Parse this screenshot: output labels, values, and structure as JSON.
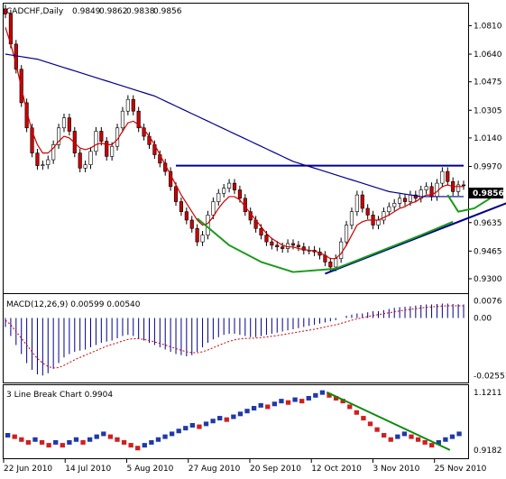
{
  "header": {
    "symbol": "CADCHF,Daily",
    "open": "0.9849",
    "high": "0.9862",
    "low": "0.9838",
    "close": "0.9856"
  },
  "price_axis": {
    "labels": [
      "1.0810",
      "1.0640",
      "1.0475",
      "1.0305",
      "1.0140",
      "0.9970",
      "0.9800",
      "0.9635",
      "0.9465",
      "0.9300"
    ],
    "current_price_label": "0.9856"
  },
  "macd": {
    "label": "MACD(12,26,9) 0.00599 0.00540",
    "axis_labels": [
      "0.0076",
      "0.00",
      "-0.02551"
    ]
  },
  "line_break": {
    "label": "3 Line Break Chart 0.9904",
    "axis_labels": [
      "1.1211",
      "0.9182"
    ]
  },
  "date_axis": {
    "labels": [
      "22 Jun 2010",
      "14 Jul 2010",
      "5 Aug 2010",
      "27 Aug 2010",
      "20 Sep 2010",
      "12 Oct 2010",
      "3 Nov 2010",
      "25 Nov 2010"
    ]
  },
  "colors": {
    "bull_candle": "#ffffff",
    "bear_candle": "#cc0000",
    "sma_short": "#cc0000",
    "sma_long": "#00008b",
    "resistance": "#00008b",
    "trendline": "#00008b",
    "cup_curve": "#1a9a1a",
    "macd_hist": "#00008b",
    "macd_signal": "#cc0000",
    "lb_up": "#1e3aa8",
    "lb_down": "#d21e1e",
    "lb_trend": "#0a8a0a"
  },
  "chart_data": [
    {
      "type": "candlestick",
      "title": "CADCHF,Daily",
      "ylim": [
        0.923,
        1.092
      ],
      "x_tick_labels": [
        "22 Jun 2010",
        "14 Jul 2010",
        "5 Aug 2010",
        "27 Aug 2010",
        "20 Sep 2010",
        "12 Oct 2010",
        "3 Nov 2010",
        "25 Nov 2010"
      ],
      "close": [
        1.088,
        1.07,
        1.055,
        1.035,
        1.02,
        1.005,
        0.9975,
        0.998,
        1.001,
        1.01,
        1.02,
        1.026,
        1.018,
        1.005,
        0.996,
        0.998,
        1.006,
        1.018,
        1.012,
        1.003,
        1.009,
        1.02,
        1.03,
        1.037,
        1.03,
        1.02,
        1.015,
        1.01,
        1.004,
        0.999,
        0.994,
        0.985,
        0.976,
        0.97,
        0.965,
        0.96,
        0.952,
        0.956,
        0.968,
        0.976,
        0.981,
        0.984,
        0.987,
        0.983,
        0.978,
        0.97,
        0.965,
        0.96,
        0.956,
        0.952,
        0.95,
        0.949,
        0.948,
        0.951,
        0.95,
        0.949,
        0.947,
        0.947,
        0.946,
        0.944,
        0.94,
        0.937,
        0.942,
        0.952,
        0.962,
        0.97,
        0.98,
        0.972,
        0.968,
        0.962,
        0.965,
        0.97,
        0.973,
        0.975,
        0.978,
        0.976,
        0.98,
        0.978,
        0.983,
        0.985,
        0.979,
        0.987,
        0.994,
        0.988,
        0.982,
        0.986,
        0.9856
      ],
      "series": [
        {
          "name": "",
          "kind": "sma_short",
          "values": [
            1.08,
            1.07,
            1.058,
            1.044,
            1.03,
            1.018,
            1.01,
            1.005,
            1.005,
            1.008,
            1.012,
            1.015,
            1.014,
            1.011,
            1.008,
            1.007,
            1.008,
            1.01,
            1.011,
            1.01,
            1.01,
            1.013,
            1.018,
            1.023,
            1.024,
            1.022,
            1.019,
            1.015,
            1.01,
            1.004,
            0.998,
            0.992,
            0.986,
            0.98,
            0.975,
            0.97,
            0.965,
            0.962,
            0.963,
            0.967,
            0.972,
            0.976,
            0.979,
            0.979,
            0.977,
            0.973,
            0.969,
            0.965,
            0.961,
            0.957,
            0.954,
            0.952,
            0.95,
            0.949,
            0.949,
            0.948,
            0.9475,
            0.947,
            0.9465,
            0.9455,
            0.944,
            0.942,
            0.942,
            0.945,
            0.95,
            0.956,
            0.962,
            0.964,
            0.965,
            0.965,
            0.965,
            0.9665,
            0.968,
            0.97,
            0.972,
            0.973,
            0.975,
            0.976,
            0.978,
            0.98,
            0.98,
            0.982,
            0.985,
            0.986,
            0.985,
            0.985,
            0.985
          ]
        },
        {
          "name": "",
          "kind": "sma_long",
          "values": [
            1.064,
            1.0635,
            1.063,
            1.0625,
            1.062,
            1.0615,
            1.061,
            1.06,
            1.059,
            1.058,
            1.057,
            1.056,
            1.055,
            1.054,
            1.053,
            1.052,
            1.051,
            1.05,
            1.049,
            1.048,
            1.047,
            1.046,
            1.045,
            1.044,
            1.043,
            1.042,
            1.041,
            1.04,
            1.039,
            1.0375,
            1.036,
            1.0345,
            1.033,
            1.0315,
            1.03,
            1.0285,
            1.027,
            1.0255,
            1.024,
            1.0225,
            1.021,
            1.0195,
            1.018,
            1.0165,
            1.015,
            1.0135,
            1.012,
            1.0105,
            1.009,
            1.0075,
            1.006,
            1.0045,
            1.003,
            1.0015,
            1.0,
            0.999,
            0.998,
            0.997,
            0.996,
            0.995,
            0.994,
            0.993,
            0.992,
            0.991,
            0.99,
            0.989,
            0.988,
            0.987,
            0.986,
            0.985,
            0.984,
            0.983,
            0.982,
            0.9815,
            0.981,
            0.9805,
            0.98,
            0.9795,
            0.979,
            0.979,
            0.979,
            0.979,
            0.979,
            0.979,
            0.979,
            0.979,
            0.979
          ]
        }
      ],
      "annotations": {
        "resistance_level": 0.9975,
        "trendline": {
          "from": [
            0.933,
            60
          ],
          "to": [
            0.98,
            98
          ]
        },
        "cup_curve": {
          "points": [
            [
              0.966,
              36
            ],
            [
              0.95,
              42
            ],
            [
              0.94,
              48
            ],
            [
              0.934,
              54
            ],
            [
              0.936,
              62
            ],
            [
              0.946,
              70
            ],
            [
              0.956,
              78
            ],
            [
              0.964,
              84
            ]
          ]
        },
        "handle_curve": {
          "points": [
            [
              0.98,
              83
            ],
            [
              0.97,
              85
            ],
            [
              0.972,
              88
            ],
            [
              0.978,
              91
            ]
          ]
        }
      }
    },
    {
      "type": "histogram",
      "title": "MACD(12,26,9) 0.00599 0.00540",
      "ylim": [
        -0.027,
        0.009
      ],
      "series": [
        {
          "name": "",
          "kind": "macd_histogram",
          "values": [
            -0.004,
            -0.008,
            -0.012,
            -0.016,
            -0.02,
            -0.023,
            -0.025,
            -0.0255,
            -0.0245,
            -0.0225,
            -0.02,
            -0.0175,
            -0.016,
            -0.015,
            -0.0145,
            -0.014,
            -0.013,
            -0.012,
            -0.011,
            -0.0105,
            -0.01,
            -0.009,
            -0.008,
            -0.0075,
            -0.008,
            -0.009,
            -0.01,
            -0.011,
            -0.012,
            -0.013,
            -0.014,
            -0.015,
            -0.016,
            -0.0165,
            -0.017,
            -0.0165,
            -0.015,
            -0.013,
            -0.011,
            -0.0095,
            -0.0085,
            -0.0075,
            -0.007,
            -0.007,
            -0.0075,
            -0.008,
            -0.0085,
            -0.0085,
            -0.008,
            -0.0075,
            -0.007,
            -0.0065,
            -0.006,
            -0.0055,
            -0.005,
            -0.0045,
            -0.004,
            -0.0035,
            -0.003,
            -0.0025,
            -0.002,
            -0.0015,
            -0.001,
            0.0,
            0.001,
            0.0015,
            0.002,
            0.002,
            0.0025,
            0.003,
            0.003,
            0.0035,
            0.004,
            0.0045,
            0.0048,
            0.005,
            0.0052,
            0.0055,
            0.0058,
            0.006,
            0.006,
            0.0062,
            0.0064,
            0.0064,
            0.0062,
            0.0061,
            0.006
          ]
        },
        {
          "name": "",
          "kind": "macd_signal",
          "values": [
            -0.001,
            -0.003,
            -0.006,
            -0.009,
            -0.012,
            -0.015,
            -0.018,
            -0.02,
            -0.0215,
            -0.0222,
            -0.022,
            -0.021,
            -0.0198,
            -0.0185,
            -0.0175,
            -0.0165,
            -0.0155,
            -0.0145,
            -0.0135,
            -0.0125,
            -0.0117,
            -0.011,
            -0.0102,
            -0.0095,
            -0.0092,
            -0.0092,
            -0.0095,
            -0.01,
            -0.0106,
            -0.0113,
            -0.012,
            -0.0128,
            -0.0136,
            -0.0143,
            -0.015,
            -0.0154,
            -0.0154,
            -0.015,
            -0.0142,
            -0.0132,
            -0.0122,
            -0.0112,
            -0.0104,
            -0.0097,
            -0.0093,
            -0.0091,
            -0.009,
            -0.0089,
            -0.0087,
            -0.0084,
            -0.0081,
            -0.0078,
            -0.0074,
            -0.007,
            -0.0066,
            -0.0062,
            -0.0058,
            -0.0054,
            -0.005,
            -0.0045,
            -0.004,
            -0.0035,
            -0.003,
            -0.0024,
            -0.0017,
            -0.001,
            -0.0004,
            0.0001,
            0.0006,
            0.0011,
            0.0015,
            0.0019,
            0.0023,
            0.0027,
            0.0031,
            0.0035,
            0.0038,
            0.0041,
            0.0044,
            0.0047,
            0.0049,
            0.0051,
            0.0053,
            0.0054,
            0.0054,
            0.0054,
            0.0054
          ]
        }
      ]
    },
    {
      "type": "line_break",
      "title": "3 Line Break Chart 0.9904",
      "ylim": [
        0.902,
        1.13
      ],
      "bricks": [
        {
          "x": 0,
          "y": 0.97,
          "dir": "up"
        },
        {
          "x": 2,
          "y": 0.965,
          "dir": "down"
        },
        {
          "x": 4,
          "y": 0.955,
          "dir": "down"
        },
        {
          "x": 6,
          "y": 0.945,
          "dir": "down"
        },
        {
          "x": 8,
          "y": 0.955,
          "dir": "up"
        },
        {
          "x": 10,
          "y": 0.945,
          "dir": "down"
        },
        {
          "x": 12,
          "y": 0.935,
          "dir": "down"
        },
        {
          "x": 14,
          "y": 0.945,
          "dir": "up"
        },
        {
          "x": 16,
          "y": 0.935,
          "dir": "down"
        },
        {
          "x": 18,
          "y": 0.945,
          "dir": "up"
        },
        {
          "x": 20,
          "y": 0.955,
          "dir": "up"
        },
        {
          "x": 22,
          "y": 0.945,
          "dir": "down"
        },
        {
          "x": 24,
          "y": 0.955,
          "dir": "up"
        },
        {
          "x": 26,
          "y": 0.965,
          "dir": "up"
        },
        {
          "x": 28,
          "y": 0.975,
          "dir": "up"
        },
        {
          "x": 30,
          "y": 0.965,
          "dir": "down"
        },
        {
          "x": 32,
          "y": 0.955,
          "dir": "down"
        },
        {
          "x": 34,
          "y": 0.945,
          "dir": "down"
        },
        {
          "x": 36,
          "y": 0.935,
          "dir": "down"
        },
        {
          "x": 38,
          "y": 0.925,
          "dir": "down"
        },
        {
          "x": 40,
          "y": 0.935,
          "dir": "up"
        },
        {
          "x": 42,
          "y": 0.945,
          "dir": "up"
        },
        {
          "x": 44,
          "y": 0.955,
          "dir": "up"
        },
        {
          "x": 46,
          "y": 0.965,
          "dir": "up"
        },
        {
          "x": 48,
          "y": 0.975,
          "dir": "up"
        },
        {
          "x": 50,
          "y": 0.985,
          "dir": "up"
        },
        {
          "x": 52,
          "y": 0.995,
          "dir": "up"
        },
        {
          "x": 54,
          "y": 1.005,
          "dir": "up"
        },
        {
          "x": 56,
          "y": 1.0,
          "dir": "down"
        },
        {
          "x": 58,
          "y": 1.01,
          "dir": "up"
        },
        {
          "x": 60,
          "y": 1.02,
          "dir": "up"
        },
        {
          "x": 62,
          "y": 1.03,
          "dir": "up"
        },
        {
          "x": 64,
          "y": 1.025,
          "dir": "down"
        },
        {
          "x": 66,
          "y": 1.035,
          "dir": "up"
        },
        {
          "x": 68,
          "y": 1.045,
          "dir": "up"
        },
        {
          "x": 70,
          "y": 1.055,
          "dir": "up"
        },
        {
          "x": 72,
          "y": 1.065,
          "dir": "up"
        },
        {
          "x": 74,
          "y": 1.075,
          "dir": "up"
        },
        {
          "x": 76,
          "y": 1.07,
          "dir": "down"
        },
        {
          "x": 78,
          "y": 1.08,
          "dir": "up"
        },
        {
          "x": 80,
          "y": 1.09,
          "dir": "up"
        },
        {
          "x": 82,
          "y": 1.085,
          "dir": "down"
        },
        {
          "x": 84,
          "y": 1.095,
          "dir": "up"
        },
        {
          "x": 86,
          "y": 1.09,
          "dir": "down"
        },
        {
          "x": 88,
          "y": 1.1,
          "dir": "up"
        },
        {
          "x": 90,
          "y": 1.11,
          "dir": "up"
        },
        {
          "x": 92,
          "y": 1.12,
          "dir": "up"
        },
        {
          "x": 94,
          "y": 1.11,
          "dir": "down"
        },
        {
          "x": 96,
          "y": 1.1,
          "dir": "down"
        },
        {
          "x": 98,
          "y": 1.09,
          "dir": "down"
        },
        {
          "x": 100,
          "y": 1.07,
          "dir": "down"
        },
        {
          "x": 102,
          "y": 1.05,
          "dir": "down"
        },
        {
          "x": 104,
          "y": 1.03,
          "dir": "down"
        },
        {
          "x": 106,
          "y": 1.01,
          "dir": "down"
        },
        {
          "x": 108,
          "y": 0.99,
          "dir": "down"
        },
        {
          "x": 110,
          "y": 0.97,
          "dir": "down"
        },
        {
          "x": 112,
          "y": 0.955,
          "dir": "down"
        },
        {
          "x": 114,
          "y": 0.965,
          "dir": "up"
        },
        {
          "x": 116,
          "y": 0.975,
          "dir": "up"
        },
        {
          "x": 118,
          "y": 0.965,
          "dir": "down"
        },
        {
          "x": 120,
          "y": 0.955,
          "dir": "down"
        },
        {
          "x": 122,
          "y": 0.945,
          "dir": "down"
        },
        {
          "x": 124,
          "y": 0.935,
          "dir": "down"
        },
        {
          "x": 126,
          "y": 0.945,
          "dir": "up"
        },
        {
          "x": 128,
          "y": 0.955,
          "dir": "up"
        },
        {
          "x": 130,
          "y": 0.965,
          "dir": "up"
        },
        {
          "x": 132,
          "y": 0.975,
          "dir": "up"
        }
      ],
      "trendline": {
        "from": [
          1.1211,
          94
        ],
        "to": [
          0.9182,
          130
        ]
      }
    }
  ]
}
